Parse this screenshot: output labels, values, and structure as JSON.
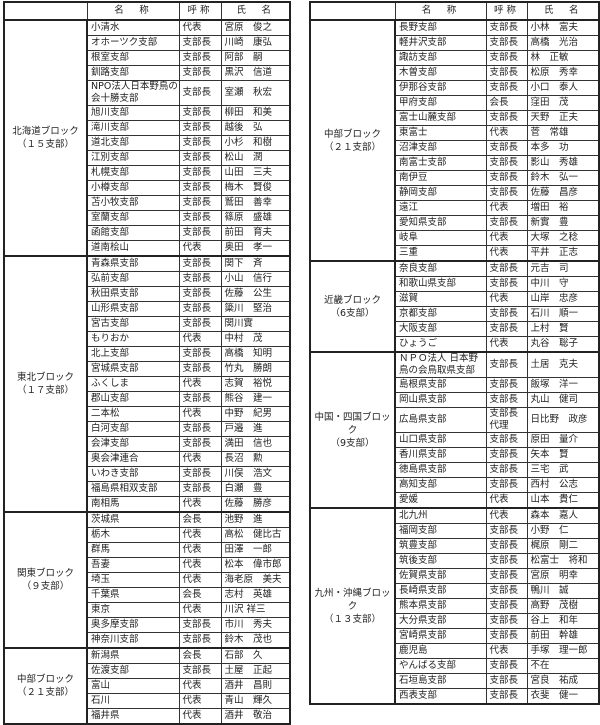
{
  "headers": {
    "block": "",
    "name": "名　称",
    "title": "呼称",
    "person": "氏　名"
  },
  "tables": [
    {
      "blocks": [
        {
          "label": "北海道ブロック",
          "count": "（１５支部）",
          "rows": [
            [
              "小清水",
              "代表",
              "宮原　俊之"
            ],
            [
              "オホーツク支部",
              "支部長",
              "川崎　康弘"
            ],
            [
              "根室支部",
              "支部長",
              "阿部　嗣"
            ],
            [
              "釧路支部",
              "支部長",
              "黒沢　信道"
            ],
            [
              "NPO法人日本野鳥の会十勝支部",
              "支部長",
              "室瀬　秋宏"
            ],
            [
              "旭川支部",
              "支部長",
              "柳田　和美"
            ],
            [
              "滝川支部",
              "支部長",
              "越後　弘"
            ],
            [
              "道北支部",
              "支部長",
              "小杉　和樹"
            ],
            [
              "江別支部",
              "支部長",
              "松山　潤"
            ],
            [
              "札幌支部",
              "支部長",
              "山田　三夫"
            ],
            [
              "小樽支部",
              "支部長",
              "梅木　賢俊"
            ],
            [
              "苫小牧支部",
              "支部長",
              "鷲田　善幸"
            ],
            [
              "室蘭支部",
              "支部長",
              "篠原　盛雄"
            ],
            [
              "函館支部",
              "支部長",
              "前田　育夫"
            ],
            [
              "道南桧山",
              "代表",
              "奥田　孝一"
            ]
          ]
        },
        {
          "label": "東北ブロック",
          "count": "（１７支部）",
          "rows": [
            [
              "青森県支部",
              "支部長",
              "関下　斉"
            ],
            [
              "弘前支部",
              "支部長",
              "小山　信行"
            ],
            [
              "秋田県支部",
              "支部長",
              "佐藤　公生"
            ],
            [
              "山形県支部",
              "支部長",
              "簗川　堅治"
            ],
            [
              "宮古支部",
              "支部長",
              "関川實"
            ],
            [
              "もりおか",
              "代表",
              "中村　茂"
            ],
            [
              "北上支部",
              "支部長",
              "高橋　知明"
            ],
            [
              "宮城県支部",
              "支部長",
              "竹丸　勝朗"
            ],
            [
              "ふくしま",
              "代表",
              "志賀　裕悦"
            ],
            [
              "郡山支部",
              "支部長",
              "熊谷　建一"
            ],
            [
              "二本松",
              "代表",
              "中野　紀男"
            ],
            [
              "白河支部",
              "支部長",
              "戸邉　進"
            ],
            [
              "会津支部",
              "支部長",
              "満田　信也"
            ],
            [
              "奥会津連合",
              "代表",
              "長沼　勲"
            ],
            [
              "いわき支部",
              "支部長",
              "川俣　浩文"
            ],
            [
              "福島県相双支部",
              "支部長",
              "白瀬　豊"
            ],
            [
              "南相馬",
              "代表",
              "佐藤　勝彦"
            ]
          ]
        },
        {
          "label": "関東ブロック",
          "count": "（９支部）",
          "rows": [
            [
              "茨城県",
              "会長",
              "池野　進"
            ],
            [
              "栃木",
              "代表",
              "高松　健比古"
            ],
            [
              "群馬",
              "代表",
              "田澤　一郎"
            ],
            [
              "吾妻",
              "代表",
              "松本　偉市郎"
            ],
            [
              "埼玉",
              "代表",
              "海老原　美夫"
            ],
            [
              "千葉県",
              "会長",
              "志村　英雄"
            ],
            [
              "東京",
              "代表",
              "川沢 祥三"
            ],
            [
              "奥多摩支部",
              "支部長",
              "市川　秀夫"
            ],
            [
              "神奈川支部",
              "支部長",
              "鈴木　茂也"
            ]
          ]
        },
        {
          "label": "中部ブロック",
          "count": "（２１支部）",
          "rows": [
            [
              "新潟県",
              "会長",
              "石部　久"
            ],
            [
              "佐渡支部",
              "支部長",
              "土屋　正起"
            ],
            [
              "富山",
              "代表",
              "酒井　昌則"
            ],
            [
              "石川",
              "代表",
              "青山　輝久"
            ],
            [
              "福井県",
              "代表",
              "酒井　敬治"
            ]
          ]
        }
      ]
    },
    {
      "blocks": [
        {
          "label": "中部ブロック",
          "count": "（２１支部）",
          "rows": [
            [
              "長野支部",
              "支部長",
              "小林　富夫"
            ],
            [
              "軽井沢支部",
              "支部長",
              "高橋　光治"
            ],
            [
              "諏訪支部",
              "支部長",
              "林　正敏"
            ],
            [
              "木曽支部",
              "支部長",
              "松原　秀幸"
            ],
            [
              "伊那谷支部",
              "支部長",
              "小口　泰人"
            ],
            [
              "甲府支部",
              "会長",
              "窪田　茂"
            ],
            [
              "富士山麓支部",
              "支部長",
              "天野　正夫"
            ],
            [
              "東富士",
              "代表",
              "菅　常雄"
            ],
            [
              "沼津支部",
              "支部長",
              "本多　功"
            ],
            [
              "南富士支部",
              "支部長",
              "影山　秀雄"
            ],
            [
              "南伊豆",
              "支部長",
              "鈴木　弘一"
            ],
            [
              "静岡支部",
              "支部長",
              "佐藤　昌彦"
            ],
            [
              "遠江",
              "代表",
              "増田　裕"
            ],
            [
              "愛知県支部",
              "支部長",
              "新實　豊"
            ],
            [
              "岐阜",
              "代表",
              "大塚　之稔"
            ],
            [
              "三重",
              "代表",
              "平井　正志"
            ]
          ]
        },
        {
          "label": "近畿ブロック",
          "count": "（6支部）",
          "rows": [
            [
              "奈良支部",
              "支部長",
              "元吉　司"
            ],
            [
              "和歌山県支部",
              "支部長",
              "中川　守"
            ],
            [
              "滋賀",
              "代表",
              "山岸　忠彦"
            ],
            [
              "京都支部",
              "支部長",
              "石川　順一"
            ],
            [
              "大阪支部",
              "支部長",
              "上村　賢"
            ],
            [
              "ひょうご",
              "代表",
              "丸谷　聡子"
            ]
          ]
        },
        {
          "label": "中国・四国ブロック",
          "count": "（9支部）",
          "rows": [
            [
              "ＮＰＯ法人 日本野鳥の会鳥取県支部",
              "支部長",
              "土居　克夫"
            ],
            [
              "島根県支部",
              "支部長",
              "飯塚　洋一"
            ],
            [
              "岡山県支部",
              "支部長",
              "丸山　健司"
            ],
            [
              "広島県支部",
              "支部長代理",
              "日比野　政彦"
            ],
            [
              "山口県支部",
              "支部長",
              "原田　量介"
            ],
            [
              "香川県支部",
              "支部長",
              "矢本　賢"
            ],
            [
              "徳島県支部",
              "支部長",
              "三宅　武"
            ],
            [
              "高知支部",
              "支部長",
              "西村　公志"
            ],
            [
              "愛媛",
              "代表",
              "山本　貴仁"
            ]
          ]
        },
        {
          "label": "九州・沖縄ブロック",
          "count": "（１３支部）",
          "rows": [
            [
              "北九州",
              "代表",
              "森本　嘉人"
            ],
            [
              "福岡支部",
              "支部長",
              "小野　仁"
            ],
            [
              "筑豊支部",
              "支部長",
              "梶原　剛二"
            ],
            [
              "筑後支部",
              "支部長",
              "松富士　将和"
            ],
            [
              "佐賀県支部",
              "支部長",
              "宮原　明幸"
            ],
            [
              "長崎県支部",
              "支部長",
              "鴨川　誠"
            ],
            [
              "熊本県支部",
              "支部長",
              "高野　茂樹"
            ],
            [
              "大分県支部",
              "支部長",
              "谷上　和年"
            ],
            [
              "宮崎県支部",
              "支部長",
              "前田　幹雄"
            ],
            [
              "鹿児島",
              "代表",
              "手塚　理一郎"
            ],
            [
              "やんばる支部",
              "支部長",
              "不在"
            ],
            [
              "石垣島支部",
              "支部長",
              "宮良　祐成"
            ],
            [
              "西表支部",
              "支部長",
              "衣斐　健一"
            ]
          ]
        }
      ]
    }
  ]
}
